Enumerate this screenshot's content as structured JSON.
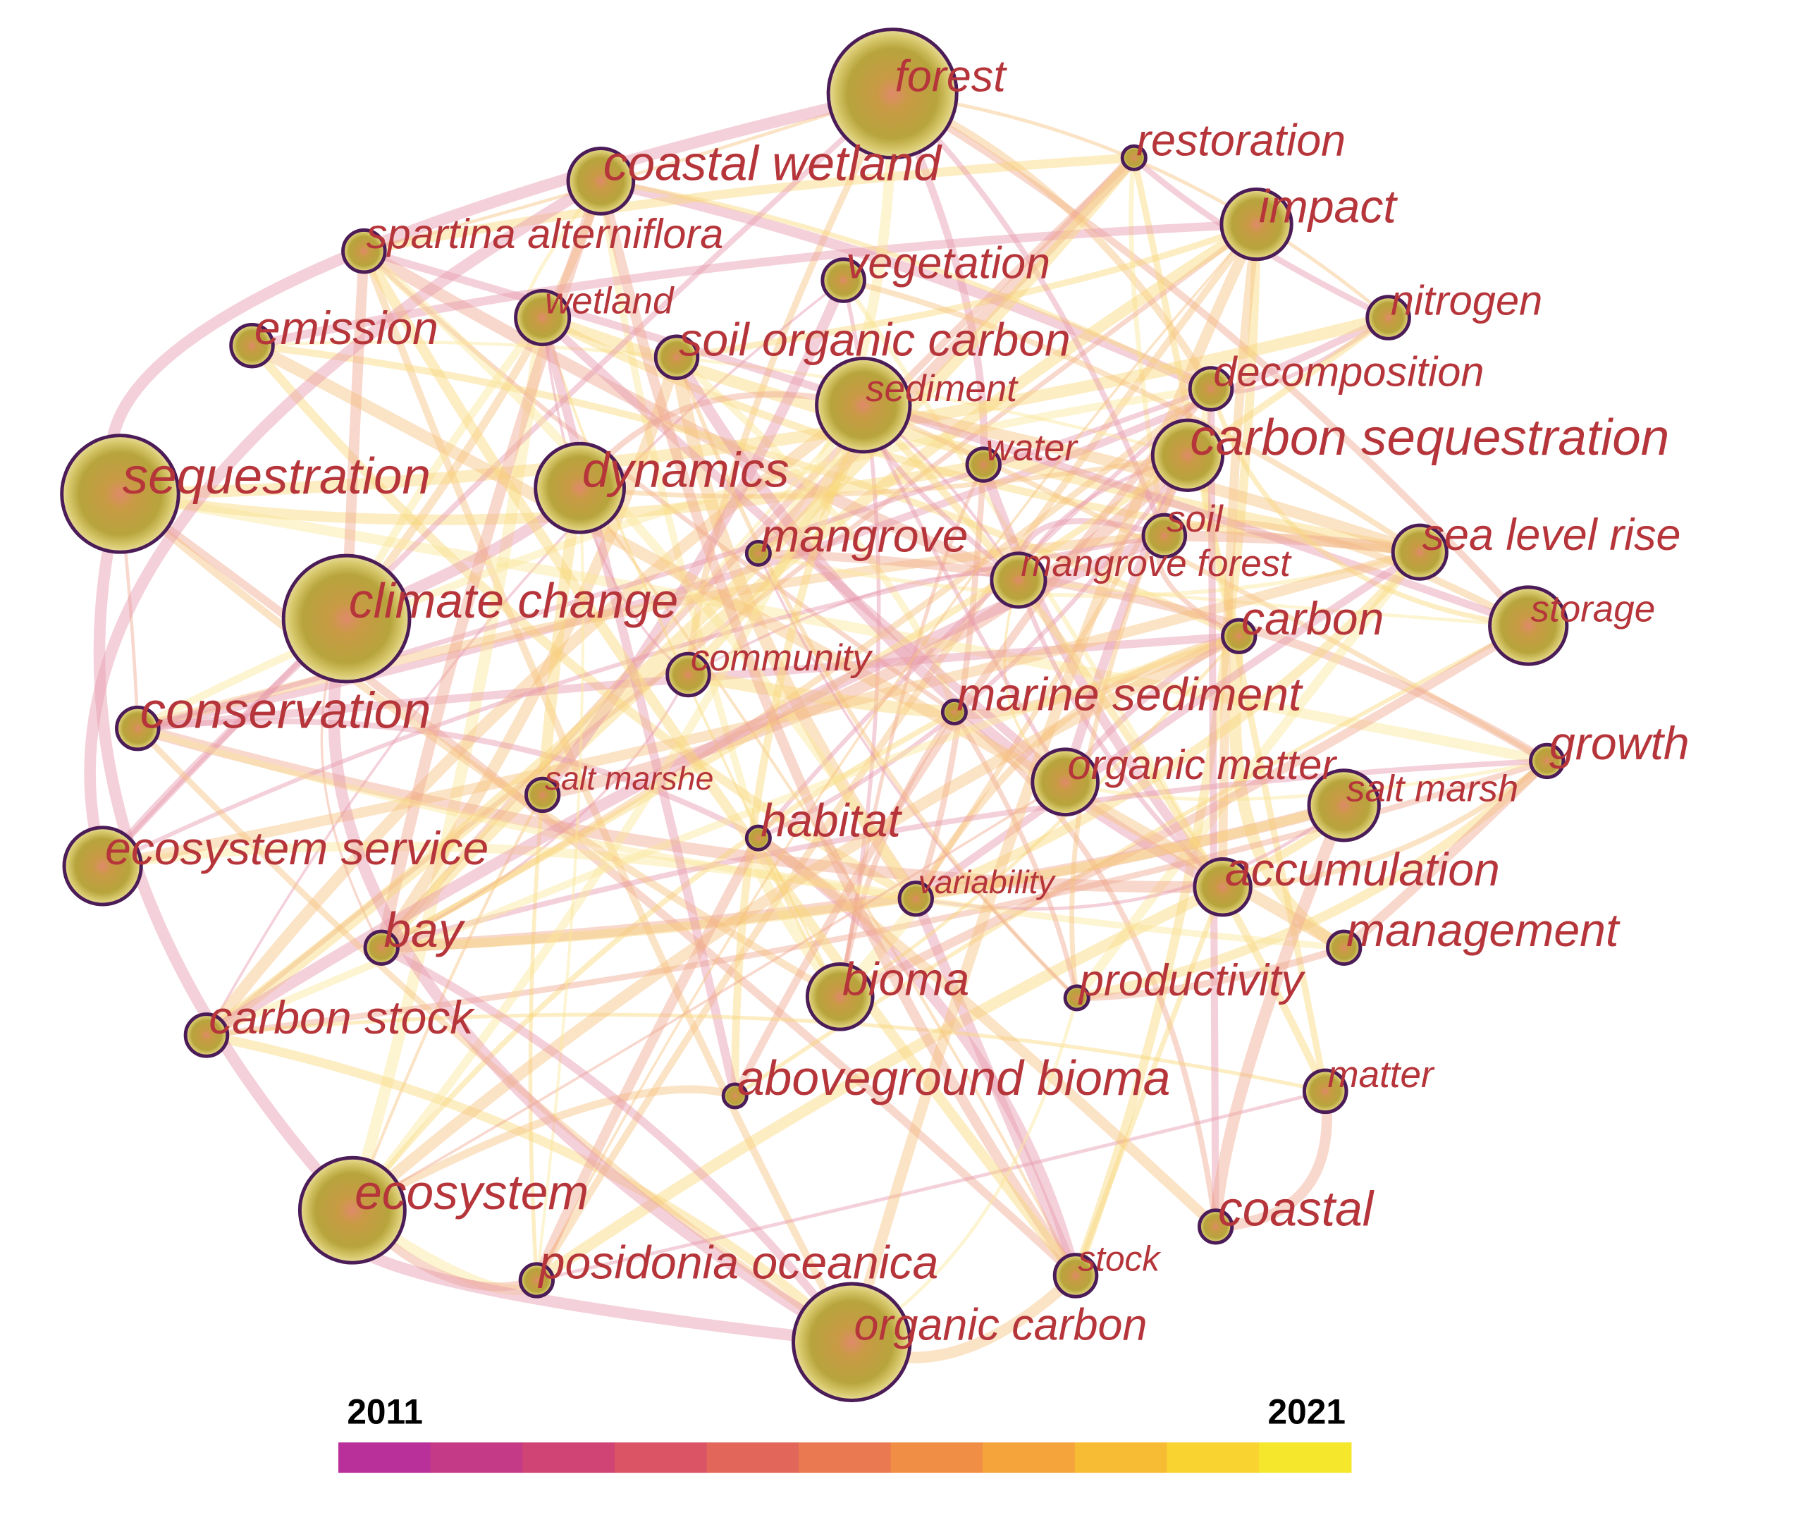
{
  "nodes": [
    {
      "label": "forest"
    },
    {
      "label": "coastal wetland"
    },
    {
      "label": "restoration"
    },
    {
      "label": "impact"
    },
    {
      "label": "spartina alterniflora"
    },
    {
      "label": "vegetation"
    },
    {
      "label": "nitrogen"
    },
    {
      "label": "emission"
    },
    {
      "label": "wetland"
    },
    {
      "label": "soil organic carbon"
    },
    {
      "label": "decomposition"
    },
    {
      "label": "sediment"
    },
    {
      "label": "carbon sequestration"
    },
    {
      "label": "water"
    },
    {
      "label": "sequestration"
    },
    {
      "label": "dynamics"
    },
    {
      "label": "soil"
    },
    {
      "label": "mangrove"
    },
    {
      "label": "mangrove forest"
    },
    {
      "label": "sea level rise"
    },
    {
      "label": "climate change"
    },
    {
      "label": "carbon"
    },
    {
      "label": "storage"
    },
    {
      "label": "community"
    },
    {
      "label": "conservation"
    },
    {
      "label": "marine sediment"
    },
    {
      "label": "growth"
    },
    {
      "label": "organic matter"
    },
    {
      "label": "salt marshe"
    },
    {
      "label": "salt marsh"
    },
    {
      "label": "habitat"
    },
    {
      "label": "ecosystem service"
    },
    {
      "label": "accumulation"
    },
    {
      "label": "variability"
    },
    {
      "label": "bay"
    },
    {
      "label": "management"
    },
    {
      "label": "bioma"
    },
    {
      "label": "productivity"
    },
    {
      "label": "carbon stock"
    },
    {
      "label": "aboveground bioma"
    },
    {
      "label": "matter"
    },
    {
      "label": "ecosystem"
    },
    {
      "label": "coastal"
    },
    {
      "label": "posidonia oceanica"
    },
    {
      "label": "stock"
    },
    {
      "label": "organic carbon"
    }
  ],
  "legend": {
    "start": 2011,
    "end": 2021
  }
}
